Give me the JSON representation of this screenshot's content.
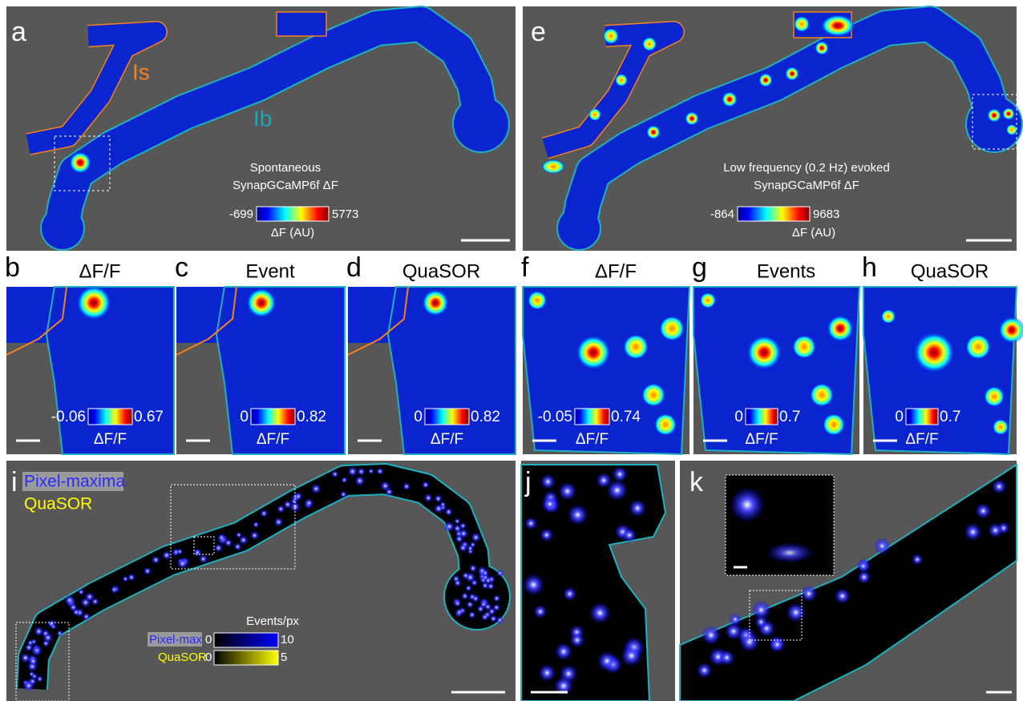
{
  "panels": [
    {
      "letter": "a",
      "annotations": [
        "Is",
        "Ib"
      ],
      "caption": [
        "Spontaneous",
        "SynapGCaMP6f ΔF"
      ],
      "colorbar": {
        "min": "-699",
        "max": "5773",
        "label": "ΔF (AU)"
      }
    },
    {
      "letter": "e",
      "caption": [
        "Low frequency (0.2 Hz) evoked",
        "SynapGCaMP6f ΔF"
      ],
      "colorbar": {
        "min": "-864",
        "max": "9683",
        "label": "ΔF (AU)"
      }
    },
    {
      "letter": "b",
      "title": "ΔF/F",
      "colorbar": {
        "min": "-0.06",
        "max": "0.67",
        "label": "ΔF/F"
      }
    },
    {
      "letter": "c",
      "title": "Event",
      "colorbar": {
        "min": "0",
        "max": "0.82",
        "label": "ΔF/F"
      }
    },
    {
      "letter": "d",
      "title": "QuaSOR",
      "colorbar": {
        "min": "0",
        "max": "0.82",
        "label": "ΔF/F"
      }
    },
    {
      "letter": "f",
      "title": "ΔF/F",
      "colorbar": {
        "min": "-0.05",
        "max": "0.74",
        "label": "ΔF/F"
      }
    },
    {
      "letter": "g",
      "title": "Events",
      "colorbar": {
        "min": "0",
        "max": "0.7",
        "label": "ΔF/F"
      }
    },
    {
      "letter": "h",
      "title": "QuaSOR",
      "colorbar": {
        "min": "0",
        "max": "0.7",
        "label": "ΔF/F"
      }
    },
    {
      "letter": "i",
      "legend": [
        "Pixel-maxima",
        "QuaSOR"
      ],
      "colorbar_title": "Events/px",
      "colorbars": [
        {
          "name": "Pixel-max",
          "min": "0",
          "max": "10"
        },
        {
          "name": "QuaSOR",
          "min": "0",
          "max": "5"
        }
      ]
    },
    {
      "letter": "j"
    },
    {
      "letter": "k"
    }
  ]
}
